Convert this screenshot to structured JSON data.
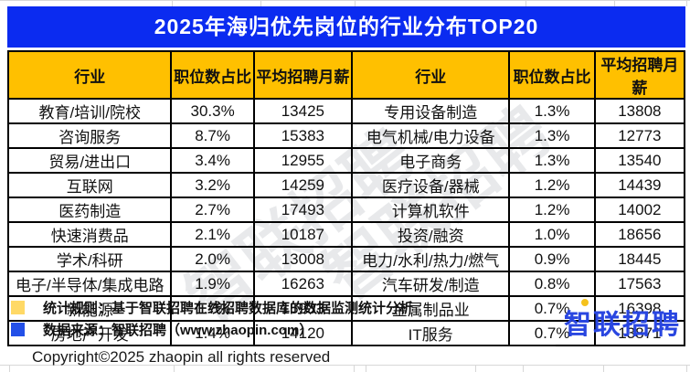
{
  "header": {
    "title": "2025年海归优先岗位的行业分布TOP20"
  },
  "watermark": "智联招聘",
  "chart_data": {
    "type": "table",
    "title": "2025年海归优先岗位的行业分布TOP20",
    "columns": [
      "行业",
      "职位数占比",
      "平均招聘月薪"
    ],
    "left_rows": [
      [
        "教育/培训/院校",
        "30.3%",
        "13425"
      ],
      [
        "咨询服务",
        "8.7%",
        "15383"
      ],
      [
        "贸易/进出口",
        "3.4%",
        "12955"
      ],
      [
        "互联网",
        "3.2%",
        "14259"
      ],
      [
        "医药制造",
        "2.7%",
        "17493"
      ],
      [
        "快速消费品",
        "2.1%",
        "10187"
      ],
      [
        "学术/科研",
        "2.0%",
        "13008"
      ],
      [
        "电子/半导体/集成电路",
        "1.9%",
        "16263"
      ],
      [
        "新能源",
        "1.7%",
        "15933"
      ],
      [
        "房地产开发",
        "1.4%",
        "14120"
      ]
    ],
    "right_rows": [
      [
        "专用设备制造",
        "1.3%",
        "13808"
      ],
      [
        "电气机械/电力设备",
        "1.3%",
        "12773"
      ],
      [
        "电子商务",
        "1.3%",
        "13540"
      ],
      [
        "医疗设备/器械",
        "1.2%",
        "14439"
      ],
      [
        "计算机软件",
        "1.2%",
        "14002"
      ],
      [
        "投资/融资",
        "1.0%",
        "18656"
      ],
      [
        "电力/水利/热力/燃气",
        "0.9%",
        "18445"
      ],
      [
        "汽车研发/制造",
        "0.8%",
        "17563"
      ],
      [
        "金属制品业",
        "0.7%",
        "16398"
      ],
      [
        "IT服务",
        "0.7%",
        "13871"
      ]
    ]
  },
  "footer": {
    "stat_rule": "统计规则：基于智联招聘在线招聘数据库的数据监测统计分析",
    "data_source": "数据来源：智联招聘（www.zhaopin.com）",
    "copyright": "Copyright©2025 zhaopin all rights reserved",
    "logo_text": "智联招聘"
  },
  "colors": {
    "title_bar": "#0b2bf0",
    "header_yellow": "#FFC000",
    "legend_yellow": "#FFD966",
    "legend_blue": "#2350e8",
    "logo_blue": "#2946e0"
  }
}
